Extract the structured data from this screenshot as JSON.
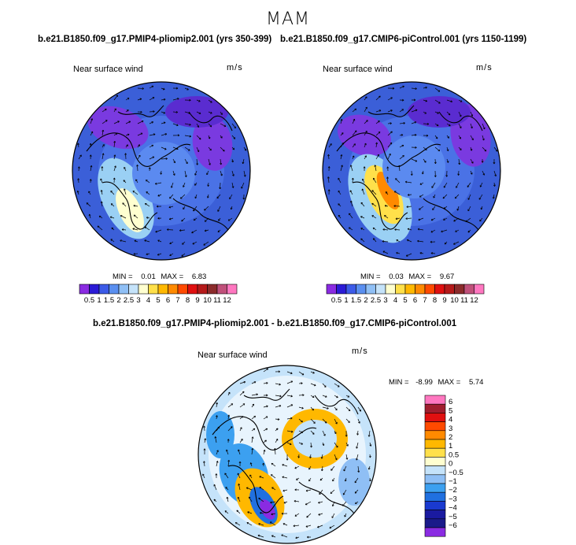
{
  "title": "MAM",
  "panels": [
    {
      "case_title": "b.e21.B1850.f09_g17.PMIP4-pliomip2.001 (yrs 350-399)",
      "field_label": "Near surface wind",
      "units": "m/s",
      "min_label": "MIN =",
      "min": "0.01",
      "max_label": "MAX =",
      "max": "6.83"
    },
    {
      "case_title": "b.e21.B1850.f09_g17.CMIP6-piControl.001 (yrs 1150-1199)",
      "field_label": "Near surface wind",
      "units": "m/s",
      "min_label": "MIN =",
      "min": "0.03",
      "max_label": "MAX =",
      "max": "9.67"
    },
    {
      "case_title": "b.e21.B1850.f09_g17.PMIP4-pliomip2.001 - b.e21.B1850.f09_g17.CMIP6-piControl.001",
      "field_label": "Near surface wind",
      "units": "m/s",
      "min_label": "MIN =",
      "min": "-8.99",
      "max_label": "MAX =",
      "max": "5.74"
    }
  ],
  "chart_data": [
    {
      "type": "heatmap",
      "projection": "north polar stereographic",
      "title": "Near surface wind",
      "units": "m/s",
      "min": 0.01,
      "max": 6.83,
      "colorbar_levels": [
        "0.5",
        "1",
        "1.5",
        "2",
        "2.5",
        "3",
        "4",
        "5",
        "6",
        "7",
        "8",
        "9",
        "10",
        "11",
        "12"
      ],
      "colorbar_colors": [
        "#8a2be2",
        "#2b1bd6",
        "#3c5be8",
        "#5a8ff0",
        "#8fbff5",
        "#c5e3fa",
        "#ffffd0",
        "#ffe04a",
        "#ffb800",
        "#ff8a00",
        "#ff4a00",
        "#e01010",
        "#b51a1a",
        "#8b2b2b",
        "#c0507a",
        "#ff77c0"
      ]
    },
    {
      "type": "heatmap",
      "projection": "north polar stereographic",
      "title": "Near surface wind",
      "units": "m/s",
      "min": 0.03,
      "max": 9.67,
      "colorbar_levels": [
        "0.5",
        "1",
        "1.5",
        "2",
        "2.5",
        "3",
        "4",
        "5",
        "6",
        "7",
        "8",
        "9",
        "10",
        "11",
        "12"
      ],
      "colorbar_colors": [
        "#8a2be2",
        "#2b1bd6",
        "#3c5be8",
        "#5a8ff0",
        "#8fbff5",
        "#c5e3fa",
        "#ffffd0",
        "#ffe04a",
        "#ffb800",
        "#ff8a00",
        "#ff4a00",
        "#e01010",
        "#b51a1a",
        "#8b2b2b",
        "#c0507a",
        "#ff77c0"
      ]
    },
    {
      "type": "heatmap",
      "projection": "north polar stereographic",
      "title": "Near surface wind",
      "units": "m/s",
      "min": -8.99,
      "max": 5.74,
      "colorbar_levels": [
        "6",
        "5",
        "4",
        "3",
        "2",
        "1",
        "0.5",
        "0",
        "−0.5",
        "−1",
        "−2",
        "−3",
        "−4",
        "−5",
        "−6"
      ],
      "colorbar_colors": [
        "#ff77c0",
        "#a01e2e",
        "#e01010",
        "#ff4a00",
        "#ff8a00",
        "#ffb800",
        "#ffe04a",
        "#ffffd0",
        "#c5e3fa",
        "#8fbff5",
        "#3ca0f0",
        "#2070e0",
        "#1a3ad0",
        "#1a1aa0",
        "#1a1a8a",
        "#8a2be2"
      ]
    }
  ]
}
